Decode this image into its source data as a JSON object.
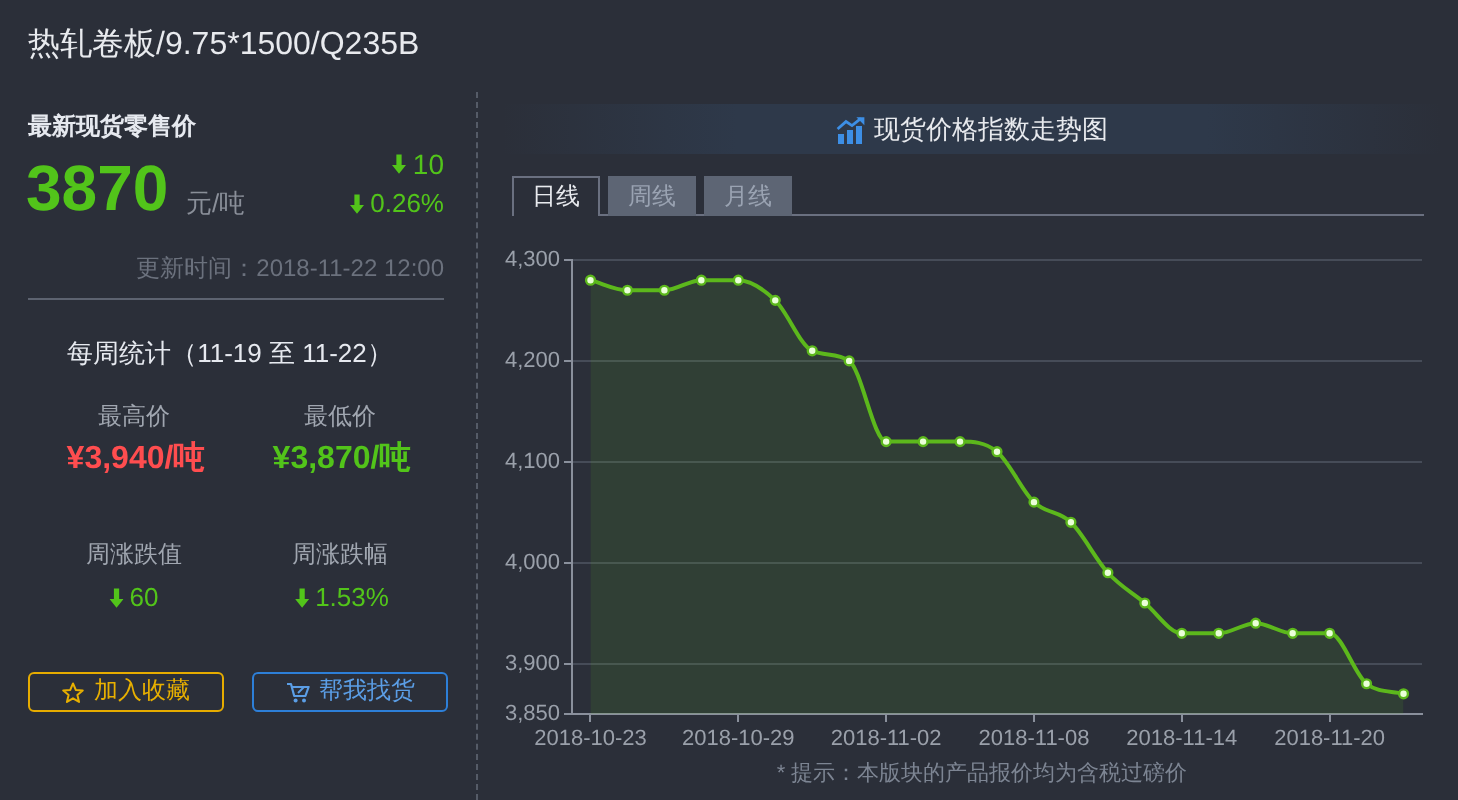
{
  "chart_data": [
    {
      "type": "other",
      "title": "热轧卷板/9.75*1500/Q235B",
      "annotations": [
        "最新现货零售价",
        "3870",
        "元/吨",
        "10",
        "0.26%",
        "更新时间：2018-11-22 12:00",
        "每周统计（11-19 至 11-22）",
        "最高价",
        "¥3,940/吨",
        "最低价",
        "¥3,870/吨",
        "周涨跌值",
        "60",
        "周涨跌幅",
        "1.53%",
        "加入收藏",
        "帮我找货"
      ]
    },
    {
      "type": "area",
      "title": "现货价格指数走势图",
      "annotations": [
        "日线",
        "周线",
        "月线",
        "* 提示：本版块的产品报价均为含税过磅价"
      ],
      "categories": [
        "2018-10-23",
        null,
        null,
        null,
        "2018-10-29",
        null,
        null,
        null,
        "2018-11-02",
        null,
        null,
        null,
        "2018-11-08",
        null,
        null,
        null,
        "2018-11-14",
        null,
        null,
        null,
        "2018-11-20",
        null,
        null
      ],
      "series": [
        {
          "color": "#5cb81c",
          "values": [
            4280,
            4270,
            4270,
            4280,
            4280,
            4260,
            4210,
            4200,
            4120,
            4120,
            4120,
            4110,
            4060,
            4040,
            3990,
            3960,
            3930,
            3930,
            3940,
            3930,
            3930,
            3880,
            3870
          ]
        }
      ],
      "ylim": [
        3850,
        4300
      ],
      "yticks": [
        {
          "value": 3850,
          "label": "3,850"
        },
        {
          "value": 3900,
          "label": "3,900"
        },
        {
          "value": 4000,
          "label": "4,000"
        },
        {
          "value": 4100,
          "label": "4,100"
        },
        {
          "value": 4200,
          "label": "4,200"
        },
        {
          "value": 4300,
          "label": "4,300"
        }
      ],
      "grid": "y",
      "marker": "circle"
    }
  ]
}
